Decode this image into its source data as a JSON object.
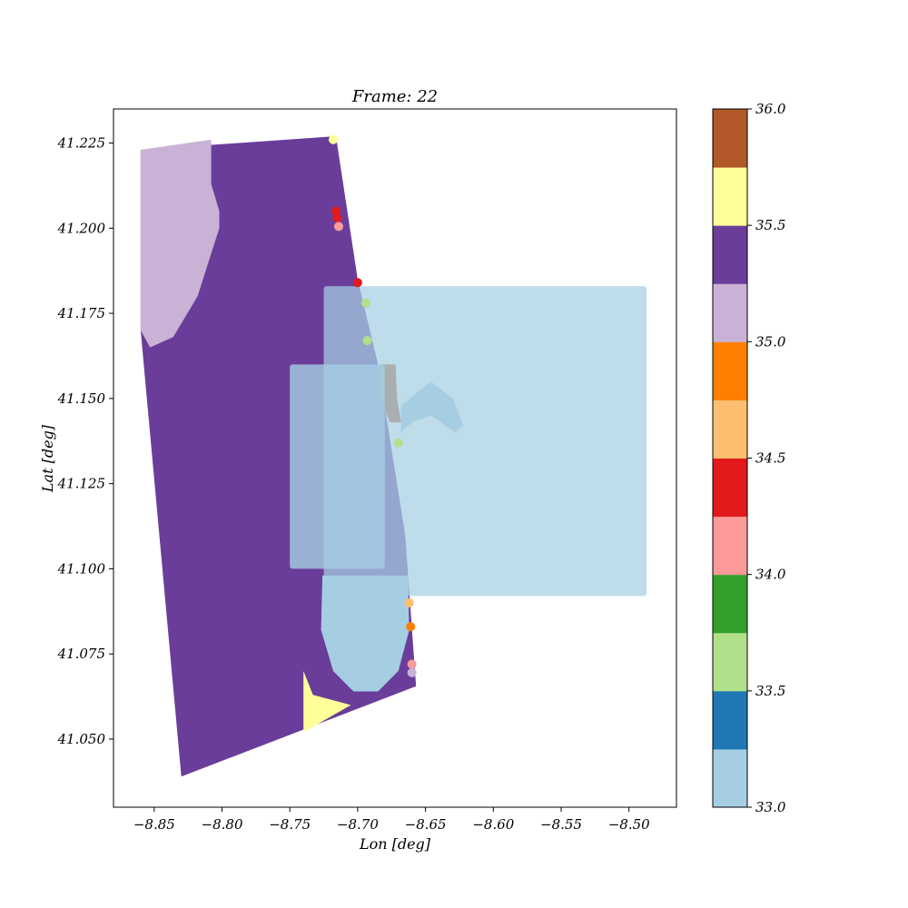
{
  "chart_data": {
    "type": "scatter",
    "title": "Frame: 22",
    "xlabel": "Lon [deg]",
    "ylabel": "Lat [deg]",
    "xlim": [
      -8.88,
      -8.465
    ],
    "ylim": [
      41.03,
      41.235
    ],
    "xticks": [
      -8.85,
      -8.8,
      -8.75,
      -8.7,
      -8.65,
      -8.6,
      -8.55,
      -8.5
    ],
    "xtick_labels": [
      "−8.85",
      "−8.80",
      "−8.75",
      "−8.70",
      "−8.65",
      "−8.60",
      "−8.55",
      "−8.50"
    ],
    "yticks": [
      41.05,
      41.075,
      41.1,
      41.125,
      41.15,
      41.175,
      41.2,
      41.225
    ],
    "ytick_labels": [
      "41.050",
      "41.075",
      "41.100",
      "41.125",
      "41.150",
      "41.175",
      "41.200",
      "41.225"
    ],
    "grid": false,
    "colorbar": {
      "colormap": "Paired",
      "min": 33.0,
      "max": 36.0,
      "ticks": [
        33.0,
        33.5,
        34.0,
        34.5,
        35.0,
        35.5,
        36.0
      ],
      "tick_labels": [
        "33.0",
        "33.5",
        "34.0",
        "34.5",
        "35.0",
        "35.5",
        "36.0"
      ],
      "bins": [
        {
          "from": 33.0,
          "to": 33.25,
          "color": "#a6cee3"
        },
        {
          "from": 33.25,
          "to": 33.5,
          "color": "#1f78b4"
        },
        {
          "from": 33.5,
          "to": 33.75,
          "color": "#b2df8a"
        },
        {
          "from": 33.75,
          "to": 34.0,
          "color": "#33a02c"
        },
        {
          "from": 34.0,
          "to": 34.25,
          "color": "#fb9a99"
        },
        {
          "from": 34.25,
          "to": 34.5,
          "color": "#e31a1c"
        },
        {
          "from": 34.5,
          "to": 34.75,
          "color": "#fdbf6f"
        },
        {
          "from": 34.75,
          "to": 35.0,
          "color": "#ff7f00"
        },
        {
          "from": 35.0,
          "to": 35.25,
          "color": "#cab2d6"
        },
        {
          "from": 35.25,
          "to": 35.5,
          "color": "#6a3d9a"
        },
        {
          "from": 35.5,
          "to": 35.75,
          "color": "#ffff99"
        },
        {
          "from": 35.75,
          "to": 36.0,
          "color": "#b15928"
        }
      ]
    },
    "layers": [
      {
        "name": "outer-domain",
        "kind": "polygon",
        "value": 35.4,
        "color": "#6a3d9a",
        "points": [
          [
            -8.86,
            41.223
          ],
          [
            -8.716,
            41.227
          ],
          [
            -8.7,
            41.185
          ],
          [
            -8.685,
            41.16
          ],
          [
            -8.665,
            41.11
          ],
          [
            -8.657,
            41.0655
          ],
          [
            -8.83,
            41.039
          ],
          [
            -8.86,
            41.17
          ]
        ]
      },
      {
        "name": "northwest-lilac",
        "kind": "polygon",
        "value": 35.1,
        "color": "#cab2d6",
        "points": [
          [
            -8.86,
            41.223
          ],
          [
            -8.808,
            41.226
          ],
          [
            -8.808,
            41.213
          ],
          [
            -8.802,
            41.205
          ],
          [
            -8.802,
            41.2
          ],
          [
            -8.818,
            41.18
          ],
          [
            -8.836,
            41.168
          ],
          [
            -8.853,
            41.165
          ],
          [
            -8.86,
            41.17
          ]
        ]
      },
      {
        "name": "southwest-yellow",
        "kind": "polygon",
        "value": 35.6,
        "color": "#ffff99",
        "points": [
          [
            -8.74,
            41.07
          ],
          [
            -8.733,
            41.063
          ],
          [
            -8.705,
            41.06
          ],
          [
            -8.74,
            41.052
          ]
        ]
      },
      {
        "name": "southern-bulge",
        "kind": "polygon",
        "value": 33.1,
        "color": "#a6cee3",
        "points": [
          [
            -8.726,
            41.098
          ],
          [
            -8.663,
            41.098
          ],
          [
            -8.662,
            41.082
          ],
          [
            -8.67,
            41.07
          ],
          [
            -8.685,
            41.064
          ],
          [
            -8.703,
            41.064
          ],
          [
            -8.718,
            41.07
          ],
          [
            -8.727,
            41.082
          ]
        ]
      },
      {
        "name": "coastal-plume",
        "kind": "polygon",
        "value": 33.1,
        "color": "#a6cee3",
        "points": [
          [
            -8.668,
            41.148
          ],
          [
            -8.646,
            41.155
          ],
          [
            -8.63,
            41.15
          ],
          [
            -8.622,
            41.142
          ],
          [
            -8.628,
            41.14
          ],
          [
            -8.646,
            41.145
          ],
          [
            -8.66,
            41.143
          ],
          [
            -8.668,
            41.14
          ]
        ]
      },
      {
        "name": "river-channel",
        "kind": "polygon",
        "value": 35.9,
        "color": "#b15928",
        "points": [
          [
            -8.684,
            41.16
          ],
          [
            -8.672,
            41.16
          ],
          [
            -8.671,
            41.15
          ],
          [
            -8.668,
            41.143
          ],
          [
            -8.676,
            41.143
          ],
          [
            -8.684,
            41.15
          ]
        ]
      },
      {
        "name": "large-box",
        "kind": "rect",
        "value": 33.1,
        "color": "#a6cee3",
        "opacity": 0.72,
        "lon": [
          -8.725,
          -8.487
        ],
        "lat": [
          41.092,
          41.183
        ]
      },
      {
        "name": "inner-box",
        "kind": "rect",
        "value": 33.1,
        "color": "#a6cee3",
        "opacity": 0.8,
        "lon": [
          -8.75,
          -8.68
        ],
        "lat": [
          41.1,
          41.16
        ]
      }
    ],
    "points": [
      {
        "lon": -8.718,
        "lat": 41.226,
        "value": 35.6
      },
      {
        "lon": -8.716,
        "lat": 41.205,
        "value": 34.4
      },
      {
        "lon": -8.715,
        "lat": 41.203,
        "value": 34.4
      },
      {
        "lon": -8.714,
        "lat": 41.2005,
        "value": 34.1
      },
      {
        "lon": -8.7,
        "lat": 41.184,
        "value": 34.4
      },
      {
        "lon": -8.694,
        "lat": 41.178,
        "value": 33.6
      },
      {
        "lon": -8.693,
        "lat": 41.167,
        "value": 33.6
      },
      {
        "lon": -8.662,
        "lat": 41.09,
        "value": 34.6
      },
      {
        "lon": -8.661,
        "lat": 41.083,
        "value": 34.9
      },
      {
        "lon": -8.66,
        "lat": 41.072,
        "value": 34.1
      },
      {
        "lon": -8.66,
        "lat": 41.0695,
        "value": 35.1
      },
      {
        "lon": -8.67,
        "lat": 41.137,
        "value": 33.6
      }
    ]
  }
}
